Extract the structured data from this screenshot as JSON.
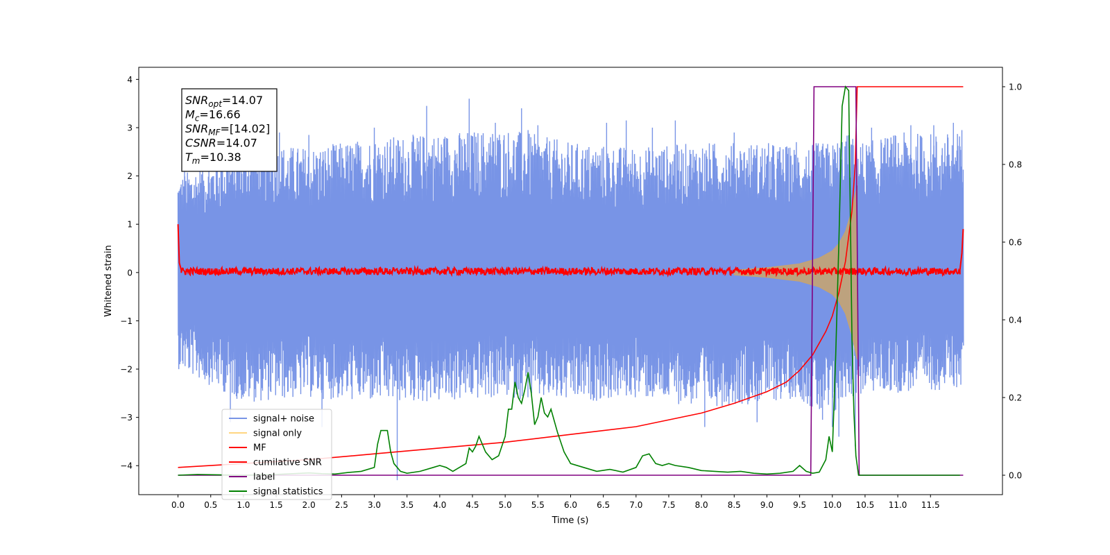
{
  "chart_data": {
    "type": "line",
    "xlabel": "Time (s)",
    "ylabel": "Whitened strain",
    "xlim": [
      -0.6,
      12.6
    ],
    "ylim": [
      -4.6,
      4.25
    ],
    "ylim_right": [
      -0.05,
      1.05
    ],
    "x_ticks": [
      0.0,
      0.5,
      1.0,
      1.5,
      2.0,
      2.5,
      3.0,
      3.5,
      4.0,
      4.5,
      5.0,
      5.5,
      6.0,
      6.5,
      7.0,
      7.5,
      8.0,
      8.5,
      9.0,
      9.5,
      10.0,
      10.5,
      11.0,
      11.5
    ],
    "x_tick_labels": [
      "0.0",
      "0.5",
      "1.0",
      "1.5",
      "2.0",
      "2.5",
      "3.0",
      "3.5",
      "4.0",
      "4.5",
      "5.0",
      "5.5",
      "6.0",
      "6.5",
      "7.0",
      "7.5",
      "8.0",
      "8.5",
      "9.0",
      "9.5",
      "10.0",
      "10.5",
      "11.0",
      "11.5"
    ],
    "y_ticks": [
      -4,
      -3,
      -2,
      -1,
      0,
      1,
      2,
      3,
      4
    ],
    "y_tick_labels": [
      "−4",
      "−3",
      "−2",
      "−1",
      "0",
      "1",
      "2",
      "3",
      "4"
    ],
    "y_ticks_right": [
      0.0,
      0.2,
      0.4,
      0.6,
      0.8,
      1.0
    ],
    "y_tick_labels_right": [
      "0.0",
      "0.2",
      "0.4",
      "0.6",
      "0.8",
      "1.0"
    ],
    "legend_position": "lower-left",
    "series": [
      {
        "name": "signal+ noise",
        "axis": "left",
        "color": "#7894e6",
        "envelope": {
          "x": [
            0.0,
            1.0,
            2.0,
            3.0,
            4.0,
            5.0,
            6.0,
            7.0,
            8.0,
            9.0,
            9.5,
            9.8,
            10.0,
            10.2,
            10.38,
            10.5,
            11.0,
            12.0
          ],
          "upper": [
            2.0,
            2.7,
            2.6,
            2.8,
            2.9,
            3.0,
            2.7,
            2.6,
            2.7,
            2.7,
            2.6,
            2.7,
            2.7,
            2.9,
            2.8,
            2.7,
            2.9,
            2.9
          ],
          "lower": [
            -2.0,
            -2.7,
            -2.6,
            -2.7,
            -2.7,
            -2.6,
            -2.7,
            -2.6,
            -2.8,
            -2.7,
            -2.6,
            -3.0,
            -3.1,
            -2.6,
            -2.6,
            -2.5,
            -2.5,
            -2.4
          ]
        },
        "spikes": [
          {
            "x": 0.1,
            "y": 2.1
          },
          {
            "x": 0.8,
            "y": -3.1
          },
          {
            "x": 1.15,
            "y": 3.05
          },
          {
            "x": 1.55,
            "y": 2.9
          },
          {
            "x": 2.0,
            "y": 2.85
          },
          {
            "x": 2.2,
            "y": -3.2
          },
          {
            "x": 3.0,
            "y": 3.0
          },
          {
            "x": 3.35,
            "y": -4.3
          },
          {
            "x": 3.8,
            "y": 3.45
          },
          {
            "x": 4.45,
            "y": 3.6
          },
          {
            "x": 4.85,
            "y": 3.1
          },
          {
            "x": 5.25,
            "y": 3.4
          },
          {
            "x": 5.35,
            "y": 2.95
          },
          {
            "x": 5.5,
            "y": 3.05
          },
          {
            "x": 6.55,
            "y": 3.1
          },
          {
            "x": 6.85,
            "y": 3.15
          },
          {
            "x": 7.25,
            "y": 3.0
          },
          {
            "x": 7.6,
            "y": 3.15
          },
          {
            "x": 8.05,
            "y": -3.2
          },
          {
            "x": 8.5,
            "y": 2.9
          },
          {
            "x": 8.85,
            "y": -3.1
          },
          {
            "x": 9.45,
            "y": 2.7
          },
          {
            "x": 9.85,
            "y": -3.05
          },
          {
            "x": 10.0,
            "y": -3.2
          },
          {
            "x": 10.1,
            "y": -3.4
          },
          {
            "x": 10.35,
            "y": -3.6
          },
          {
            "x": 10.6,
            "y": 3.0
          },
          {
            "x": 11.2,
            "y": 3.05
          },
          {
            "x": 11.55,
            "y": 3.05
          },
          {
            "x": 11.85,
            "y": 3.1
          },
          {
            "x": 11.98,
            "y": 2.95
          }
        ]
      },
      {
        "name": "signal only",
        "axis": "left",
        "color": "#c9a46b",
        "envelope": {
          "x": [
            8.5,
            9.0,
            9.5,
            9.8,
            10.0,
            10.1,
            10.2,
            10.3,
            10.38
          ],
          "upper": [
            0.05,
            0.1,
            0.18,
            0.3,
            0.45,
            0.6,
            0.85,
            1.3,
            1.8
          ],
          "lower": [
            -0.05,
            -0.1,
            -0.18,
            -0.3,
            -0.45,
            -0.6,
            -0.85,
            -1.3,
            -1.8
          ]
        }
      },
      {
        "name": "MF",
        "axis": "left",
        "color": "#ff0000",
        "band": [
          -0.05,
          0.1
        ],
        "start_transient": {
          "x": [
            0.0,
            0.02,
            0.05
          ],
          "y": [
            1.0,
            0.2,
            0.05
          ]
        },
        "end_transient": {
          "x": [
            11.95,
            11.98,
            12.0
          ],
          "y": [
            0.05,
            0.4,
            0.9
          ]
        }
      },
      {
        "name": "cumilative SNR",
        "axis": "right",
        "color": "#ff0000",
        "x": [
          0.0,
          1.0,
          2.0,
          3.0,
          4.0,
          5.0,
          6.0,
          7.0,
          8.0,
          8.5,
          9.0,
          9.3,
          9.5,
          9.7,
          9.9,
          10.0,
          10.1,
          10.2,
          10.3,
          10.35,
          10.38,
          10.5,
          11.0,
          12.0
        ],
        "values": [
          0.02,
          0.03,
          0.04,
          0.055,
          0.07,
          0.085,
          0.105,
          0.125,
          0.16,
          0.185,
          0.215,
          0.24,
          0.27,
          0.31,
          0.37,
          0.41,
          0.47,
          0.55,
          0.68,
          0.8,
          1.0,
          1.0,
          1.0,
          1.0
        ]
      },
      {
        "name": "label",
        "axis": "right",
        "color": "#800080",
        "x": [
          0.0,
          9.67,
          9.72,
          10.36,
          10.41,
          12.0
        ],
        "values": [
          0.0,
          0.0,
          1.0,
          1.0,
          0.0,
          0.0
        ]
      },
      {
        "name": "signal statistics",
        "axis": "right",
        "color": "#008000",
        "x": [
          0.0,
          0.3,
          0.6,
          1.0,
          1.5,
          2.0,
          2.2,
          2.4,
          2.6,
          2.8,
          3.0,
          3.05,
          3.1,
          3.2,
          3.25,
          3.3,
          3.4,
          3.5,
          3.7,
          3.9,
          4.0,
          4.1,
          4.2,
          4.3,
          4.4,
          4.45,
          4.5,
          4.55,
          4.6,
          4.65,
          4.7,
          4.8,
          4.9,
          5.0,
          5.05,
          5.1,
          5.15,
          5.2,
          5.25,
          5.3,
          5.35,
          5.4,
          5.45,
          5.5,
          5.55,
          5.6,
          5.65,
          5.7,
          5.75,
          5.8,
          5.9,
          6.0,
          6.2,
          6.4,
          6.6,
          6.8,
          7.0,
          7.1,
          7.2,
          7.3,
          7.4,
          7.5,
          7.6,
          7.8,
          8.0,
          8.2,
          8.4,
          8.6,
          8.8,
          9.0,
          9.2,
          9.4,
          9.5,
          9.6,
          9.7,
          9.8,
          9.9,
          9.95,
          10.0,
          10.05,
          10.1,
          10.15,
          10.2,
          10.25,
          10.3,
          10.33,
          10.36,
          10.4,
          10.45,
          10.5,
          11.0,
          11.5,
          11.95
        ],
        "values": [
          0.0,
          0.002,
          0.001,
          0.0,
          0.002,
          0.006,
          0.004,
          0.003,
          0.007,
          0.01,
          0.02,
          0.08,
          0.115,
          0.115,
          0.06,
          0.03,
          0.01,
          0.005,
          0.01,
          0.02,
          0.025,
          0.02,
          0.01,
          0.02,
          0.03,
          0.07,
          0.06,
          0.075,
          0.1,
          0.08,
          0.06,
          0.04,
          0.05,
          0.1,
          0.17,
          0.17,
          0.24,
          0.2,
          0.185,
          0.22,
          0.265,
          0.21,
          0.13,
          0.15,
          0.2,
          0.16,
          0.15,
          0.17,
          0.14,
          0.11,
          0.06,
          0.03,
          0.02,
          0.01,
          0.015,
          0.008,
          0.02,
          0.05,
          0.055,
          0.03,
          0.025,
          0.03,
          0.025,
          0.02,
          0.012,
          0.01,
          0.008,
          0.01,
          0.005,
          0.003,
          0.005,
          0.01,
          0.025,
          0.01,
          0.005,
          0.008,
          0.04,
          0.1,
          0.06,
          0.3,
          0.6,
          0.95,
          1.0,
          0.99,
          0.35,
          0.16,
          0.05,
          0.0,
          0.0,
          0.0,
          0.0,
          0.0,
          0.0
        ]
      }
    ],
    "annotation_box": {
      "lines": [
        {
          "var": "SNR",
          "sub": "opt",
          "value": "=14.07"
        },
        {
          "var": "M",
          "sub": "c",
          "value": "=16.66"
        },
        {
          "var": "SNR",
          "sub": "MF",
          "value": "=[14.02]"
        },
        {
          "var": "CSNR",
          "sub": "",
          "value": "=14.07"
        },
        {
          "var": "T",
          "sub": "m",
          "value": "=10.38"
        }
      ]
    }
  }
}
